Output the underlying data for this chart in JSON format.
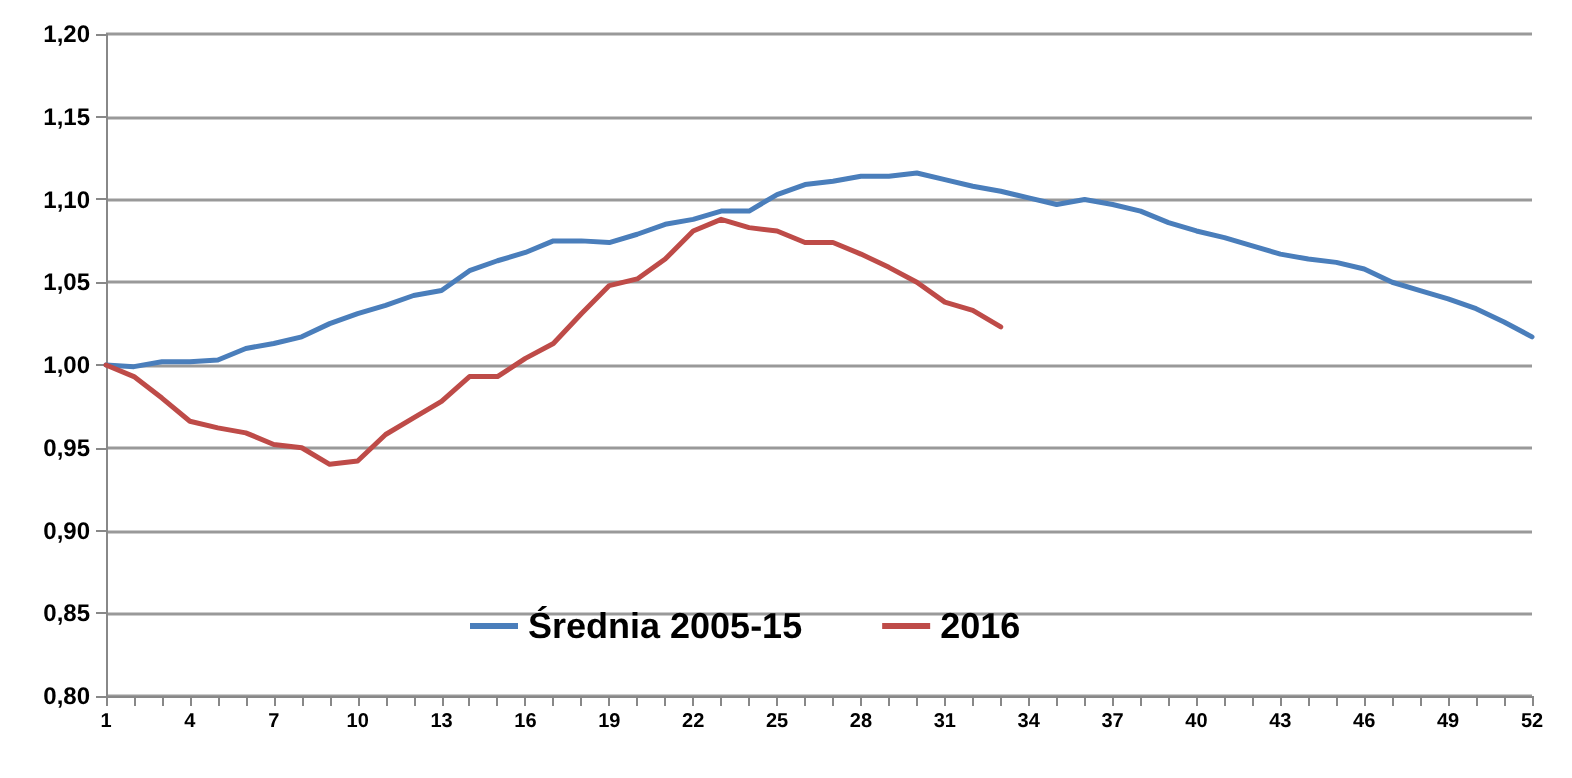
{
  "chart_data": {
    "type": "line",
    "categories": [
      "1",
      null,
      null,
      "4",
      null,
      null,
      "7",
      null,
      null,
      "10",
      null,
      null,
      "13",
      null,
      null,
      "16",
      null,
      null,
      "19",
      null,
      null,
      "22",
      null,
      null,
      "25",
      null,
      null,
      "28",
      null,
      null,
      "31",
      null,
      null,
      "34",
      null,
      null,
      "37",
      null,
      null,
      "40",
      null,
      null,
      "43",
      null,
      null,
      "46",
      null,
      null,
      "49",
      null,
      null,
      "52"
    ],
    "series": [
      {
        "name": "Średnia 2005-15",
        "color": "#4a7ebb",
        "values": [
          1.0,
          0.999,
          1.002,
          1.002,
          1.003,
          1.01,
          1.013,
          1.017,
          1.025,
          1.031,
          1.036,
          1.042,
          1.045,
          1.057,
          1.063,
          1.068,
          1.075,
          1.075,
          1.074,
          1.079,
          1.085,
          1.088,
          1.093,
          1.093,
          1.103,
          1.109,
          1.111,
          1.114,
          1.114,
          1.116,
          1.112,
          1.108,
          1.105,
          1.101,
          1.097,
          1.1,
          1.097,
          1.093,
          1.086,
          1.081,
          1.077,
          1.072,
          1.067,
          1.064,
          1.062,
          1.058,
          1.05,
          1.045,
          1.04,
          1.034,
          1.026,
          1.017
        ]
      },
      {
        "name": "2016",
        "color": "#be4b48",
        "values": [
          1.0,
          0.993,
          0.98,
          0.966,
          0.962,
          0.959,
          0.952,
          0.95,
          0.94,
          0.942,
          0.958,
          0.968,
          0.978,
          0.993,
          0.993,
          1.004,
          1.013,
          1.031,
          1.048,
          1.052,
          1.064,
          1.081,
          1.088,
          1.083,
          1.081,
          1.074,
          1.074,
          1.067,
          1.059,
          1.05,
          1.038,
          1.033,
          1.023,
          null,
          null,
          null,
          null,
          null,
          null,
          null,
          null,
          null,
          null,
          null,
          null,
          null,
          null,
          null,
          null,
          null,
          null,
          null
        ]
      }
    ],
    "ylim": [
      0.8,
      1.2
    ],
    "yticks": [
      {
        "value": 0.8,
        "label": "0,80"
      },
      {
        "value": 0.85,
        "label": "0,85"
      },
      {
        "value": 0.9,
        "label": "0,90"
      },
      {
        "value": 0.95,
        "label": "0,95"
      },
      {
        "value": 1.0,
        "label": "1,00"
      },
      {
        "value": 1.05,
        "label": "1,05"
      },
      {
        "value": 1.1,
        "label": "1,10"
      },
      {
        "value": 1.15,
        "label": "1,15"
      },
      {
        "value": 1.2,
        "label": "1,20"
      }
    ],
    "grid": "y",
    "legend": "bottom left",
    "marker": "none",
    "line_style": "solid"
  }
}
